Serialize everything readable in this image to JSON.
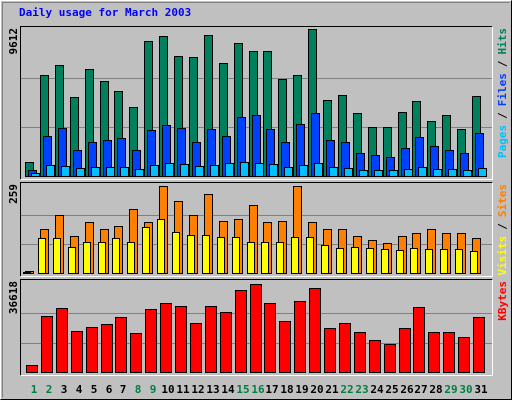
{
  "chart_data": [
    {
      "type": "bar",
      "title": "Daily usage for March 2003",
      "ylim": [
        0,
        9612
      ],
      "grid": true,
      "legend_separator": "/",
      "series": [
        {
          "name": "Hits",
          "color": "#00805c",
          "values": [
            916,
            6605,
            7260,
            5167,
            7000,
            6213,
            5559,
            4513,
            8829,
            9156,
            7848,
            7783,
            9221,
            7391,
            8698,
            8175,
            8175,
            6344,
            6605,
            9612,
            4970,
            5297,
            4120,
            3205,
            3205,
            4186,
            4905,
            3597,
            3990,
            3074,
            5232
          ]
        },
        {
          "name": "Files",
          "color": "#0040ff",
          "values": [
            392,
            2616,
            3139,
            1700,
            2223,
            2354,
            2485,
            1700,
            3008,
            3335,
            3139,
            2223,
            3074,
            2616,
            3858,
            3989,
            3074,
            2223,
            3400,
            4120,
            2354,
            2223,
            1504,
            1373,
            1242,
            1831,
            2550,
            1962,
            1700,
            1504,
            2812
          ]
        },
        {
          "name": "Pages",
          "color": "#00c0ff",
          "values": [
            196,
            720,
            660,
            500,
            600,
            560,
            620,
            480,
            700,
            850,
            780,
            640,
            720,
            880,
            930,
            880,
            760,
            590,
            720,
            820,
            560,
            500,
            410,
            390,
            380,
            470,
            560,
            450,
            470,
            400,
            520
          ]
        }
      ]
    },
    {
      "type": "bar",
      "ylim": [
        0,
        259
      ],
      "grid": true,
      "legend_separator": "/",
      "series": [
        {
          "name": "Sites",
          "color": "#ff8000",
          "values": [
            6,
            131,
            173,
            110,
            152,
            131,
            140,
            191,
            152,
            259,
            215,
            173,
            236,
            155,
            161,
            203,
            152,
            155,
            259,
            152,
            131,
            131,
            110,
            98,
            89,
            110,
            119,
            131,
            119,
            119,
            104
          ]
        },
        {
          "name": "Visits",
          "color": "#ffff00",
          "values": [
            3,
            104,
            104,
            77,
            92,
            92,
            104,
            92,
            137,
            161,
            122,
            113,
            113,
            107,
            107,
            92,
            92,
            92,
            107,
            107,
            83,
            74,
            77,
            74,
            71,
            68,
            74,
            71,
            71,
            71,
            65
          ]
        }
      ]
    },
    {
      "type": "bar",
      "ylim": [
        0,
        36618
      ],
      "grid": true,
      "categories": [
        "1",
        "2",
        "3",
        "4",
        "5",
        "6",
        "7",
        "8",
        "9",
        "10",
        "11",
        "12",
        "13",
        "14",
        "15",
        "16",
        "17",
        "18",
        "19",
        "20",
        "21",
        "22",
        "23",
        "24",
        "25",
        "26",
        "27",
        "28",
        "29",
        "30",
        "31"
      ],
      "category_colors": [
        "#008040",
        "#008040",
        "#000000",
        "#000000",
        "#000000",
        "#000000",
        "#000000",
        "#008040",
        "#008040",
        "#000000",
        "#000000",
        "#000000",
        "#000000",
        "#000000",
        "#008040",
        "#008040",
        "#000000",
        "#000000",
        "#000000",
        "#000000",
        "#000000",
        "#008040",
        "#008040",
        "#000000",
        "#000000",
        "#000000",
        "#000000",
        "#000000",
        "#008040",
        "#008040",
        "#000000"
      ],
      "series": [
        {
          "name": "KBytes",
          "color": "#ff0000",
          "values": [
            2877,
            23430,
            26720,
            17260,
            18900,
            20140,
            23020,
            16030,
            26310,
            28780,
            27540,
            20550,
            27540,
            25080,
            34120,
            36618,
            28780,
            21370,
            29600,
            34940,
            18490,
            20550,
            16440,
            13150,
            11510,
            18490,
            27130,
            16850,
            16440,
            14380,
            23020
          ]
        }
      ]
    }
  ]
}
